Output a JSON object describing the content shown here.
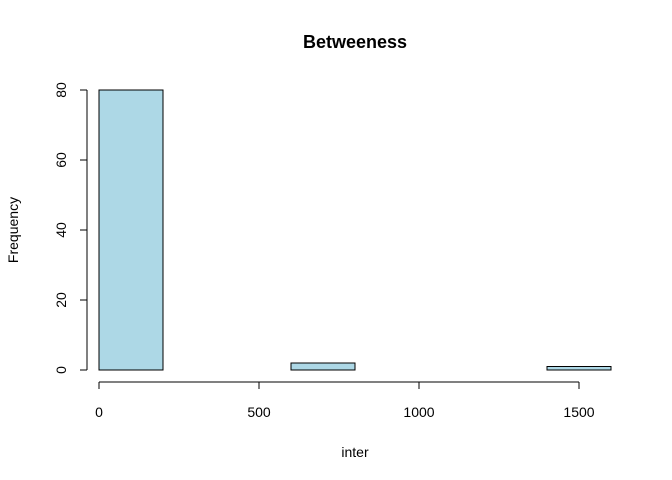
{
  "chart_data": {
    "type": "bar",
    "title": "Betweeness",
    "xlabel": "inter",
    "ylabel": "Frequency",
    "bins": [
      {
        "start": 0,
        "end": 200,
        "count": 80
      },
      {
        "start": 200,
        "end": 400,
        "count": 0
      },
      {
        "start": 400,
        "end": 600,
        "count": 0
      },
      {
        "start": 600,
        "end": 800,
        "count": 2
      },
      {
        "start": 800,
        "end": 1000,
        "count": 0
      },
      {
        "start": 1000,
        "end": 1200,
        "count": 0
      },
      {
        "start": 1200,
        "end": 1400,
        "count": 0
      },
      {
        "start": 1400,
        "end": 1600,
        "count": 1
      }
    ],
    "xlim": [
      0,
      1600
    ],
    "ylim": [
      0,
      80
    ],
    "xticks": [
      0,
      500,
      1000,
      1500
    ],
    "yticks": [
      0,
      20,
      40,
      60,
      80
    ],
    "grid": false,
    "bar_color": "#ADD8E6",
    "edge_color": "#000000"
  }
}
